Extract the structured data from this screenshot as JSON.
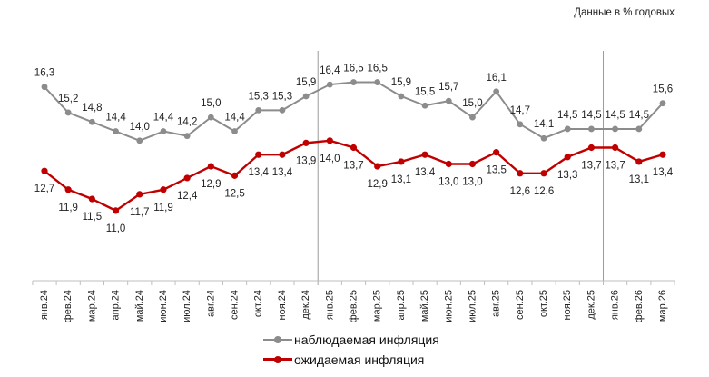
{
  "units_note": "Данные в % годовых",
  "legend": {
    "observed": "наблюдаемая инфляция",
    "expected": "ожидаемая инфляция"
  },
  "colors": {
    "observed": "#8c8c8c",
    "expected": "#c00000",
    "divider": "#9a9a9a"
  },
  "chart_data": {
    "type": "line",
    "title": "",
    "xlabel": "",
    "ylabel": "",
    "ylim": [
      8,
      18
    ],
    "grid": false,
    "legend_position": "bottom",
    "categories": [
      "янв.24",
      "фев.24",
      "мар.24",
      "апр.24",
      "май.24",
      "июн.24",
      "июл.24",
      "авг.24",
      "сен.24",
      "окт.24",
      "ноя.24",
      "дек.24",
      "янв.25",
      "фев.25",
      "мар.25",
      "апр.25",
      "май.25",
      "июн.25",
      "июл.25",
      "авг.25",
      "сен.25",
      "окт.25",
      "ноя.25",
      "дек.25",
      "янв.26",
      "фев.26",
      "мар.26"
    ],
    "year_dividers_after": [
      "дек.24",
      "дек.25"
    ],
    "series": [
      {
        "name": "наблюдаемая инфляция",
        "values": [
          16.3,
          15.2,
          14.8,
          14.4,
          14.0,
          14.4,
          14.2,
          15.0,
          14.4,
          15.3,
          15.3,
          15.9,
          16.4,
          16.5,
          16.5,
          15.9,
          15.5,
          15.7,
          15.0,
          16.1,
          14.7,
          14.1,
          14.5,
          14.5,
          14.5,
          14.5,
          15.6
        ],
        "labels": [
          "16,3",
          "15,2",
          "14,8",
          "14,4",
          "14,0",
          "14,4",
          "14,2",
          "15,0",
          "14,4",
          "15,3",
          "15,3",
          "15,9",
          "16,4",
          "16,5",
          "16,5",
          "15,9",
          "15,5",
          "15,7",
          "15,0",
          "16,1",
          "14,7",
          "14,1",
          "14,5",
          "14,5",
          "14,5",
          "14,5",
          "15,6"
        ]
      },
      {
        "name": "ожидаемая инфляция",
        "values": [
          12.7,
          11.9,
          11.5,
          11.0,
          11.7,
          11.9,
          12.4,
          12.9,
          12.5,
          13.4,
          13.4,
          13.9,
          14.0,
          13.7,
          12.9,
          13.1,
          13.4,
          13.0,
          13.0,
          13.5,
          12.6,
          12.6,
          13.3,
          13.7,
          13.7,
          13.1,
          13.4
        ],
        "labels": [
          "12,7",
          "11,9",
          "11,5",
          "11,0",
          "11,7",
          "11,9",
          "12,4",
          "12,9",
          "12,5",
          "13,4",
          "13,4",
          "13,9",
          "14,0",
          "13,7",
          "12,9",
          "13,1",
          "13,4",
          "13,0",
          "13,0",
          "13,5",
          "12,6",
          "12,6",
          "13,3",
          "13,7",
          "13,7",
          "13,1",
          "13,4"
        ]
      }
    ]
  }
}
